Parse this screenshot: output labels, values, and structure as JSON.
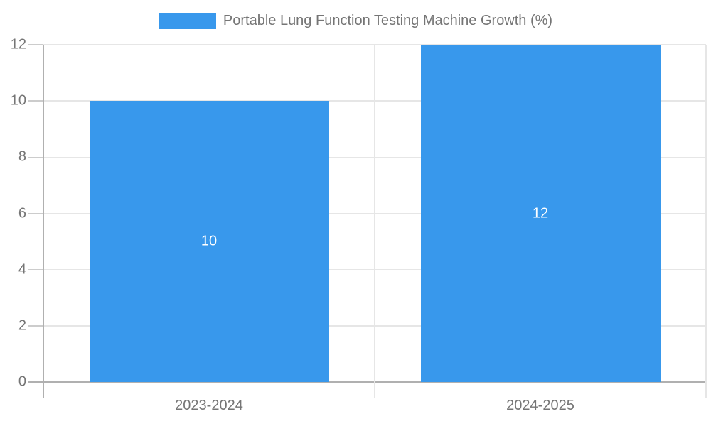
{
  "legend": {
    "label": "Portable Lung Function Testing Machine Growth (%)",
    "swatch_color": "#3898ec"
  },
  "chart_data": {
    "type": "bar",
    "title": "Portable Lung Function Testing Machine Growth (%)",
    "categories": [
      "2023-2024",
      "2024-2025"
    ],
    "values": [
      10,
      12
    ],
    "value_labels": [
      "10",
      "12"
    ],
    "series": [
      {
        "name": "Portable Lung Function Testing Machine Growth (%)",
        "values": [
          10,
          12
        ]
      }
    ],
    "xlabel": "",
    "ylabel": "",
    "ylim": [
      0,
      12
    ],
    "yticks": [
      0,
      2,
      4,
      6,
      8,
      10,
      12
    ],
    "grid": true,
    "legend_position": "top",
    "bar_color": "#3898ec",
    "annotation_text_color": "#ffffff",
    "axis_text_color": "#757575"
  }
}
